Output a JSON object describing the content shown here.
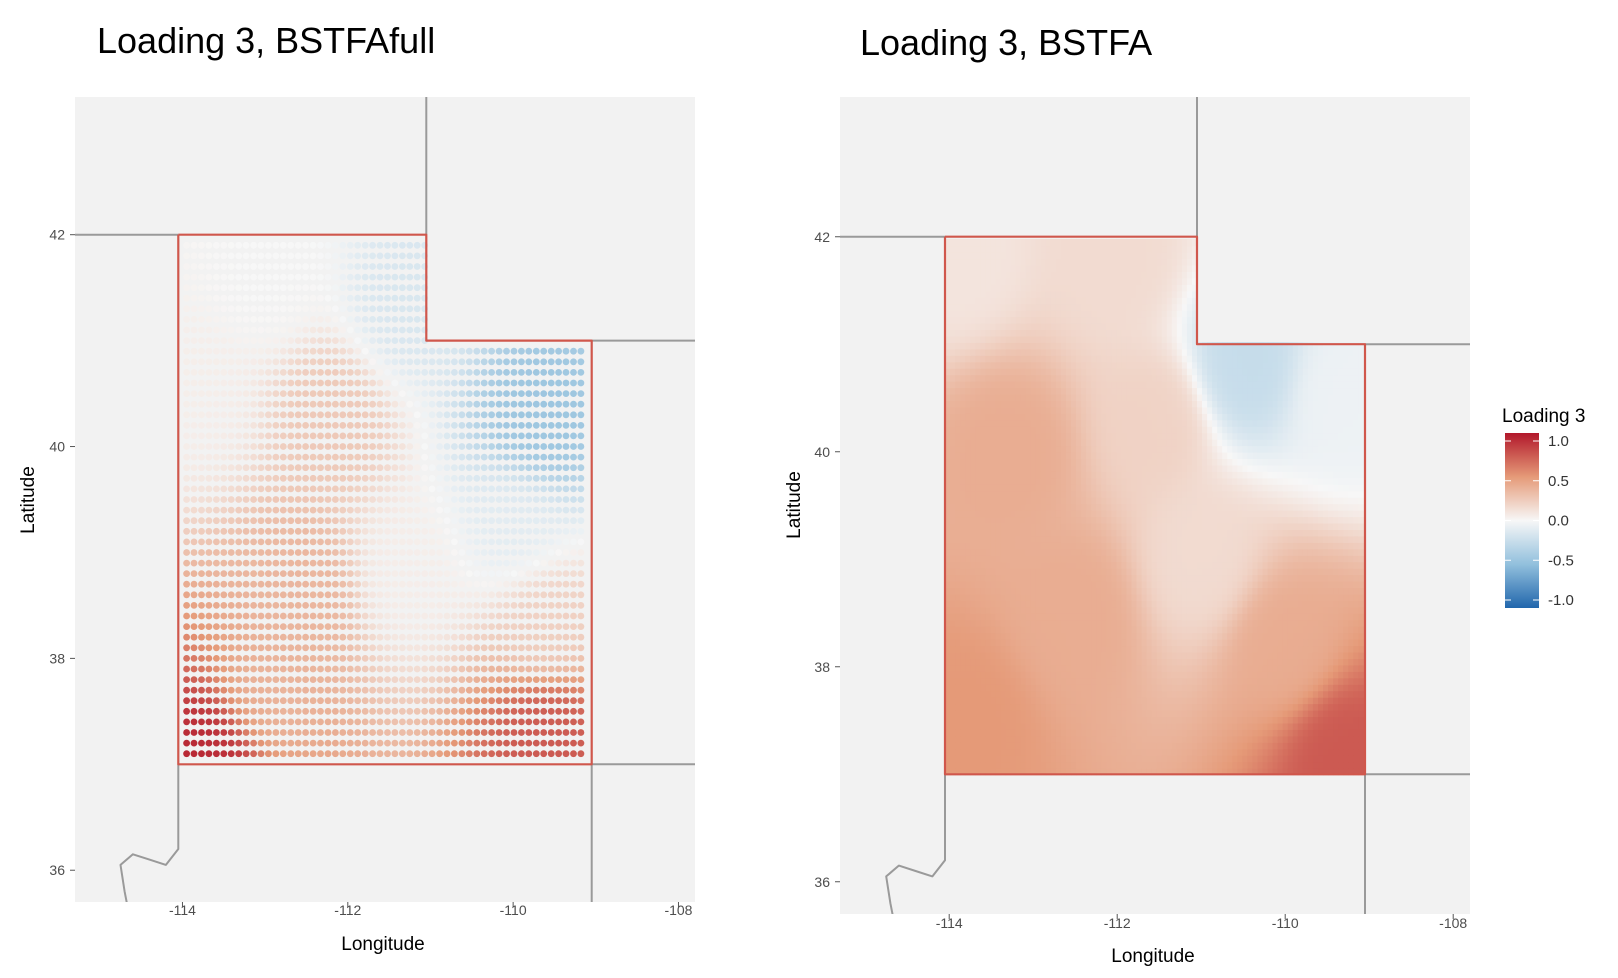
{
  "panels": [
    {
      "title": "Loading 3, BSTFAfull",
      "style": "points",
      "xlabel": "Longitude",
      "ylabel": "Latitude",
      "x_ticks": [
        "-114",
        "-112",
        "-110",
        "-108"
      ],
      "y_ticks": [
        "36",
        "38",
        "40",
        "42"
      ]
    },
    {
      "title": "Loading 3, BSTFA",
      "style": "surface",
      "xlabel": "Longitude",
      "ylabel": "Latitude",
      "x_ticks": [
        "-114",
        "-112",
        "-110",
        "-108"
      ],
      "y_ticks": [
        "36",
        "38",
        "40",
        "42"
      ]
    }
  ],
  "legend": {
    "title": "Loading 3",
    "ticks": [
      "1.0",
      "0.5",
      "0.0",
      "-0.5",
      "-1.0"
    ],
    "colors": {
      "high": "#b2182b",
      "mid": "#f7f7f7",
      "low": "#2166ac"
    }
  },
  "chart_data": {
    "type": "heatmap",
    "x_range": [
      -115.3,
      -107.8
    ],
    "y_range": [
      35.7,
      43.3
    ],
    "value_range": [
      -1.0,
      1.0
    ],
    "region": "Utah",
    "series": [
      {
        "panel": "BSTFAfull",
        "style": "points",
        "anchors": [
          {
            "lon": -113.6,
            "lat": 37.1,
            "value": 0.95
          },
          {
            "lon": -109.6,
            "lat": 37.3,
            "value": 0.75
          },
          {
            "lon": -113.0,
            "lat": 37.6,
            "value": 0.35
          },
          {
            "lon": -112.5,
            "lat": 38.6,
            "value": 0.35
          },
          {
            "lon": -112.2,
            "lat": 40.3,
            "value": 0.25
          },
          {
            "lon": -113.8,
            "lat": 40.5,
            "value": 0.05
          },
          {
            "lon": -113.0,
            "lat": 41.6,
            "value": 0.0
          },
          {
            "lon": -111.3,
            "lat": 41.3,
            "value": -0.15
          },
          {
            "lon": -109.7,
            "lat": 40.2,
            "value": -0.45
          },
          {
            "lon": -110.0,
            "lat": 39.3,
            "value": -0.1
          },
          {
            "lon": -109.6,
            "lat": 38.3,
            "value": 0.2
          },
          {
            "lon": -111.3,
            "lat": 38.8,
            "value": 0.05
          }
        ]
      },
      {
        "panel": "BSTFA",
        "style": "surface",
        "anchors": [
          {
            "lon": -113.9,
            "lat": 41.8,
            "value": 0.1
          },
          {
            "lon": -112.0,
            "lat": 41.8,
            "value": 0.15
          },
          {
            "lon": -113.3,
            "lat": 40.0,
            "value": 0.4
          },
          {
            "lon": -112.5,
            "lat": 38.5,
            "value": 0.4
          },
          {
            "lon": -113.8,
            "lat": 37.5,
            "value": 0.5
          },
          {
            "lon": -109.3,
            "lat": 37.2,
            "value": 0.75
          },
          {
            "lon": -110.0,
            "lat": 38.2,
            "value": 0.4
          },
          {
            "lon": -111.0,
            "lat": 39.0,
            "value": 0.15
          },
          {
            "lon": -110.5,
            "lat": 40.8,
            "value": -0.25
          },
          {
            "lon": -109.3,
            "lat": 40.5,
            "value": -0.05
          },
          {
            "lon": -111.5,
            "lat": 40.3,
            "value": 0.2
          }
        ]
      }
    ]
  }
}
